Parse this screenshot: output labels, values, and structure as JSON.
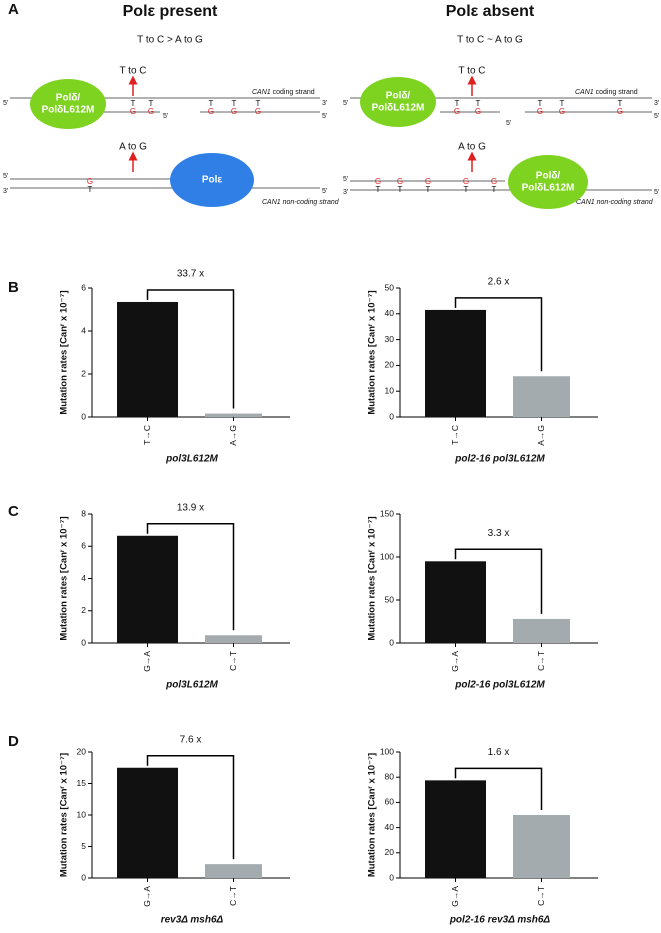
{
  "panel_labels": [
    "A",
    "B",
    "C",
    "D"
  ],
  "diagram": {
    "left": {
      "title": "Polε present",
      "summary": "T to C > A to G",
      "top_enzyme": [
        "Polδ/",
        "PolδL612M"
      ],
      "top_mutation": "T to C",
      "bottom_mutation": "A to G",
      "bottom_enzyme": [
        "Polε"
      ],
      "coding_gene": "CAN1",
      "coding_label": "coding strand",
      "noncoding_gene": "CAN1",
      "noncoding_label": "non-coding strand",
      "ends": [
        "5'",
        "3'",
        "5'",
        "5'",
        "5'",
        "3'",
        "5'"
      ],
      "coding_pairs": [
        [
          "T",
          "G"
        ],
        [
          "T",
          "G"
        ],
        [
          "T",
          "G"
        ],
        [
          "T",
          "G"
        ],
        [
          "T",
          "G"
        ]
      ],
      "noncoding_pairs": [
        [
          "G",
          "T"
        ]
      ]
    },
    "right": {
      "title": "Polε absent",
      "summary": "T to C ~ A to G",
      "top_enzyme": [
        "Polδ/",
        "PolδL612M"
      ],
      "top_mutation": "T to C",
      "bottom_mutation": "A to G",
      "bottom_enzyme": [
        "Polδ/",
        "PolδL612M"
      ],
      "coding_gene": "CAN1",
      "coding_label": "coding strand",
      "noncoding_gene": "CAN1",
      "noncoding_label": "non-coding strand",
      "ends": [
        "5'",
        "3'",
        "5'",
        "5'",
        "5'",
        "3'",
        "5'"
      ],
      "coding_pairs": [
        [
          "T",
          "G"
        ],
        [
          "T",
          "G"
        ],
        [
          "T",
          "G"
        ],
        [
          "T",
          "G"
        ],
        [
          "T",
          "G"
        ]
      ],
      "noncoding_pairs": [
        [
          "G",
          "T"
        ],
        [
          "G",
          "T"
        ],
        [
          "G",
          "T"
        ],
        [
          "G",
          "T"
        ],
        [
          "G",
          "T"
        ]
      ]
    }
  },
  "chart_data": [
    {
      "type": "bar",
      "ylabel": "Mutation rates [Canʳ x 10⁻⁷]",
      "xlabel": "pol3L612M",
      "annotation": "33.7 x",
      "categories": [
        "T→C",
        "A→G"
      ],
      "values": [
        5.35,
        0.16
      ],
      "colors": [
        "#111111",
        "#a3abae"
      ],
      "ylim": [
        0,
        6
      ],
      "yticks": [
        0,
        2,
        4,
        6
      ]
    },
    {
      "type": "bar",
      "ylabel": "Mutation rates [Canʳ x 10⁻⁷]",
      "xlabel": "pol2-16 pol3L612M",
      "annotation": "2.6 x",
      "categories": [
        "T→C",
        "A→G"
      ],
      "values": [
        41.5,
        15.8
      ],
      "colors": [
        "#111111",
        "#a3abae"
      ],
      "ylim": [
        0,
        50
      ],
      "yticks": [
        0,
        10,
        20,
        30,
        40,
        50
      ]
    },
    {
      "type": "bar",
      "ylabel": "Mutation rates [Canʳ x 10⁻⁷]",
      "xlabel": "pol3L612M",
      "annotation": "13.9 x",
      "categories": [
        "G→A",
        "C→T"
      ],
      "values": [
        6.65,
        0.48
      ],
      "colors": [
        "#111111",
        "#a3abae"
      ],
      "ylim": [
        0,
        8
      ],
      "yticks": [
        0,
        2,
        4,
        6,
        8
      ]
    },
    {
      "type": "bar",
      "ylabel": "Mutation rates [Canʳ x 10⁻⁷]",
      "xlabel": "pol2-16 pol3L612M",
      "annotation": "3.3 x",
      "categories": [
        "G→A",
        "C→T"
      ],
      "values": [
        95,
        28
      ],
      "colors": [
        "#111111",
        "#a3abae"
      ],
      "ylim": [
        0,
        150
      ],
      "yticks": [
        0,
        50,
        100,
        150
      ]
    },
    {
      "type": "bar",
      "ylabel": "Mutation rates [Canʳ x 10⁻⁷]",
      "xlabel": "rev3Δ msh6Δ",
      "annotation": "7.6 x",
      "categories": [
        "G→A",
        "C→T"
      ],
      "values": [
        17.5,
        2.2
      ],
      "colors": [
        "#111111",
        "#a3abae"
      ],
      "ylim": [
        0,
        20
      ],
      "yticks": [
        0,
        5,
        10,
        15,
        20
      ]
    },
    {
      "type": "bar",
      "ylabel": "Mutation rates [Canʳ x 10⁻⁷]",
      "xlabel": "pol2-16 rev3Δ msh6Δ",
      "annotation": "1.6 x",
      "categories": [
        "G→A",
        "C→T"
      ],
      "values": [
        77.5,
        50
      ],
      "colors": [
        "#111111",
        "#a3abae"
      ],
      "ylim": [
        0,
        100
      ],
      "yticks": [
        0,
        20,
        40,
        60,
        80,
        100
      ]
    }
  ]
}
